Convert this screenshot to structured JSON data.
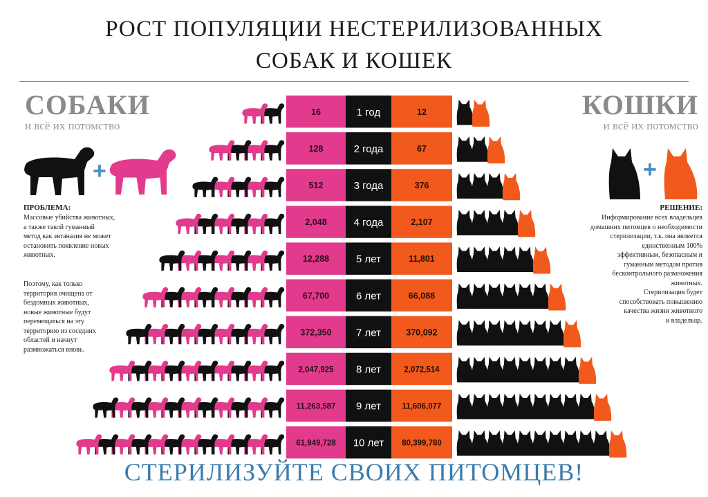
{
  "title_line1": "РОСТ ПОПУЛЯЦИИ НЕСТЕРИЛИЗОВАННЫХ",
  "title_line2": "СОБАК И КОШЕК",
  "dogs": {
    "heading": "СОБАКИ",
    "subheading": "и всё их потомство"
  },
  "cats": {
    "heading": "КОШКИ",
    "subheading": "и всё их потомство"
  },
  "plus_sign": "+",
  "problem": {
    "title": "ПРОБЛЕМА:",
    "lines": [
      "Массовые убийства животных,",
      "а также такой гуманный",
      "метод как эвтаназия не может",
      "остановить появление новых",
      "животных."
    ],
    "lines2": [
      "Поэтому, как только",
      "территория очищена от",
      "бездомных животных,",
      "новые животные будут",
      "перемещаться на эту",
      "территорию из соседних",
      "областей и начнут",
      "размножаться вновь."
    ]
  },
  "solution": {
    "title": "РЕШЕНИЕ:",
    "lines": [
      "Информирование всех владельцев",
      "домашних питомцев о необходимости",
      "стерилизации, т.к. она является",
      "единственным 100%",
      "эффективным, безопасным и",
      "гуманным методом против",
      "бесконтрольного размножения",
      "животных.",
      "Стерилизация будет",
      "способствовать повышению",
      "качества жизни животного",
      "и владельца."
    ]
  },
  "colors": {
    "dog_pink": "#e23a8d",
    "cat_orange": "#f15a1c",
    "year_black": "#111111",
    "dark_silhouette": "#111111",
    "footer_blue": "#3a7cad"
  },
  "chart_data": {
    "type": "table",
    "categories": [
      "1 год",
      "2 года",
      "3 года",
      "4 года",
      "5 лет",
      "6 лет",
      "7 лет",
      "8 лет",
      "9 лет",
      "10 лет"
    ],
    "series": [
      {
        "name": "СОБАКИ",
        "labels": [
          "16",
          "128",
          "512",
          "2,048",
          "12,288",
          "67,700",
          "372,350",
          "2,047,925",
          "11,263,587",
          "61,949,728"
        ]
      },
      {
        "name": "КОШКИ",
        "labels": [
          "12",
          "67",
          "376",
          "2,107",
          "11,801",
          "66,088",
          "370,092",
          "2,072,514",
          "11,606,077",
          "80,399,780"
        ]
      }
    ],
    "dog_icon_counts": [
      2,
      4,
      5,
      6,
      7,
      8,
      9,
      10,
      11,
      12
    ],
    "cat_icon_counts": [
      2,
      3,
      4,
      5,
      6,
      7,
      8,
      9,
      10,
      11
    ]
  },
  "footer": "СТЕРИЛИЗУЙТЕ  СВОИХ ПИТОМЦЕВ!"
}
